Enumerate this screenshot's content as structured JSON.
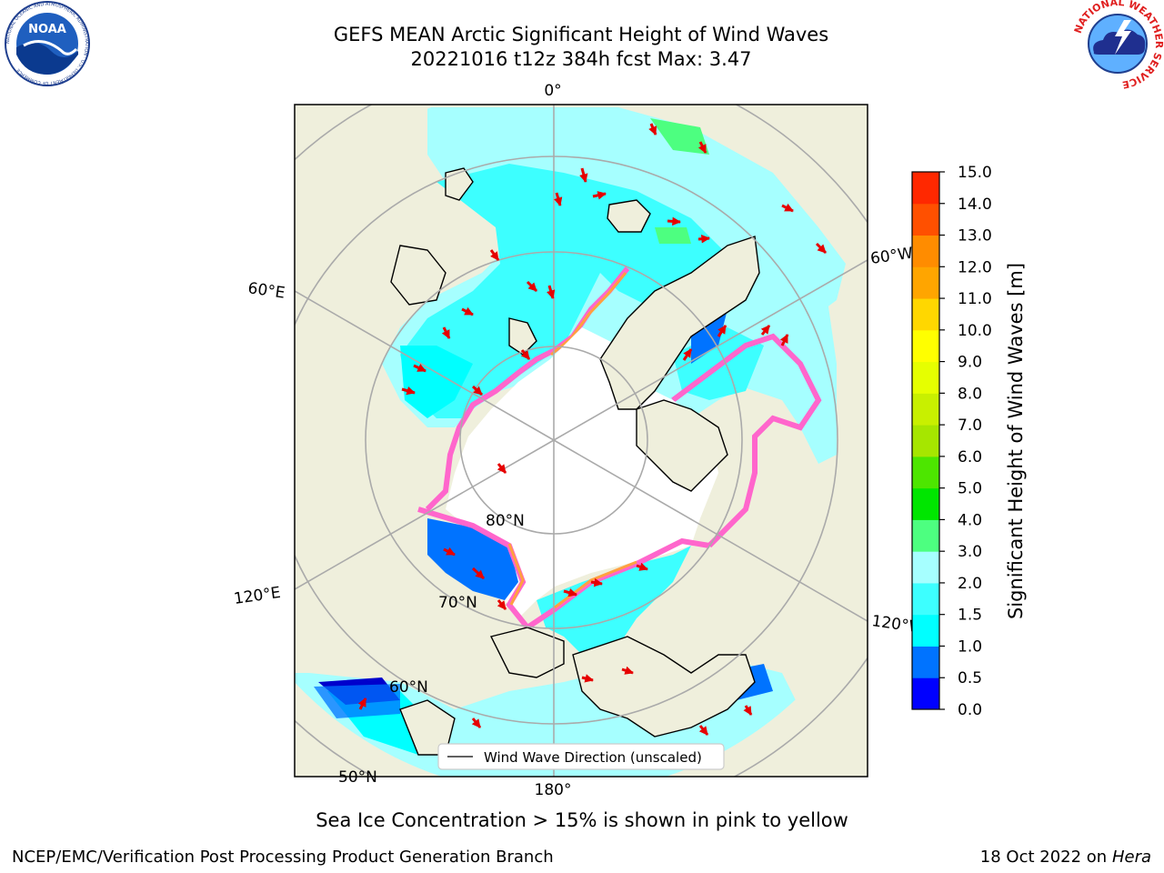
{
  "title": "GEFS MEAN Arctic Significant Height of Wind Waves",
  "subtitle_line": "20221016 t12z 384h fcst   Max: 3.47",
  "note": "Sea Ice Concentration > 15% is shown in pink to yellow",
  "footer_left": "NCEP/EMC/Verification Post Processing Product Generation Branch",
  "footer_date": "18 Oct 2022 on ",
  "footer_machine": "Hera",
  "legend_label": "Wind Wave Direction (unscaled)",
  "logos": {
    "noaa_text": "NOAA",
    "noaa_ring": "NATIONAL OCEANIC AND ATMOSPHERIC ADMINISTRATION · U.S. DEPARTMENT OF COMMERCE",
    "nws_ring": "NATIONAL WEATHER SERVICE"
  },
  "map_labels": {
    "lon_0": "0°",
    "lon_60e": "60°E",
    "lon_60w": "60°W",
    "lon_120e": "120°E",
    "lon_120w": "120°W",
    "lon_180": "180°",
    "lat_80": "80°N",
    "lat_70": "70°N",
    "lat_60": "60°N",
    "lat_50": "50°N"
  },
  "colorbar": {
    "label": "Significant Height of Wind Waves [m]",
    "ticks": [
      "15.0",
      "14.0",
      "13.0",
      "12.0",
      "11.0",
      "10.0",
      "9.0",
      "8.0",
      "7.0",
      "6.0",
      "5.0",
      "4.0",
      "3.0",
      "2.0",
      "1.5",
      "1.0",
      "0.5",
      "0.0"
    ],
    "colors": [
      "#0000ff",
      "#0073ff",
      "#00ffff",
      "#3dffff",
      "#a6ffff",
      "#4dff80",
      "#00e600",
      "#4de600",
      "#a6e600",
      "#c8f000",
      "#e6ff00",
      "#ffff00",
      "#ffd700",
      "#ffa500",
      "#ff8c00",
      "#ff5000",
      "#ff2800"
    ],
    "accent_colors": {
      "land": "#efefdc",
      "ice_pink": "#ff66cc",
      "ice_orange": "#ffa040",
      "arrow": "#e60000"
    }
  }
}
